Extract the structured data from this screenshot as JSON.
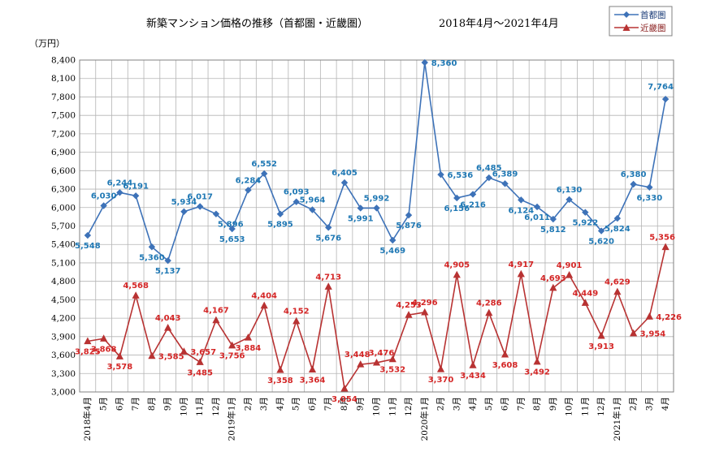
{
  "chart_data": {
    "type": "line",
    "title": "新築マンション価格の推移（首都圏・近畿圏）",
    "period": "2018年4月～2021年4月",
    "ylabel": "（万円）",
    "ylim": [
      3000,
      8400
    ],
    "ystep": 300,
    "grid": true,
    "legend_position": "top-right",
    "categories": [
      "2018年4月",
      "5月",
      "6月",
      "7月",
      "8月",
      "9月",
      "10月",
      "11月",
      "12月",
      "2019年1月",
      "2月",
      "3月",
      "4月",
      "5月",
      "6月",
      "7月",
      "8月",
      "9月",
      "10月",
      "11月",
      "12月",
      "2020年1月",
      "2月",
      "3月",
      "4月",
      "5月",
      "6月",
      "7月",
      "8月",
      "9月",
      "10月",
      "11月",
      "12月",
      "2021年1月",
      "2月",
      "3月",
      "4月"
    ],
    "series": [
      {
        "name": "首都圏",
        "color": "#3d72b8",
        "label_color": "#1f78b4",
        "marker": "diamond",
        "values": [
          5548,
          6030,
          6244,
          6191,
          5360,
          5137,
          5934,
          6017,
          5896,
          5653,
          6284,
          6552,
          5895,
          6093,
          5964,
          5676,
          6405,
          5991,
          5992,
          5469,
          5876,
          8360,
          6536,
          6156,
          6216,
          6485,
          6389,
          6124,
          6011,
          5812,
          6130,
          5922,
          5620,
          5824,
          6380,
          6330,
          7764
        ],
        "labels": [
          "5,548",
          "6,030",
          "6,244",
          "6,191",
          "5,360",
          "5,137",
          "5,934",
          "6,017",
          "5,896",
          "5,653",
          "6,284",
          "6,552",
          "5,895",
          "6,093",
          "5,964",
          "5,676",
          "6,405",
          "5,991",
          "5,992",
          "5,469",
          "5,876",
          "8,360",
          "6,536",
          "6,156",
          "6,216",
          "6,485",
          "6,389",
          "6,124",
          "6,011",
          "5,812",
          "6,130",
          "5,922",
          "5,620",
          "5,824",
          "6,380",
          "6,330",
          "7,764"
        ]
      },
      {
        "name": "近畿圏",
        "color": "#b83232",
        "label_color": "#d42626",
        "marker": "triangle",
        "values": [
          3825,
          3868,
          3578,
          4568,
          3585,
          4043,
          3657,
          3485,
          4167,
          3756,
          3884,
          4404,
          3358,
          4152,
          3364,
          4713,
          3054,
          3448,
          3476,
          3532,
          4253,
          4296,
          3370,
          4905,
          3434,
          4286,
          3608,
          4917,
          3492,
          4693,
          4901,
          4449,
          3913,
          4629,
          3954,
          4226,
          5356
        ],
        "labels": [
          "3,825",
          "3,868",
          "3,578",
          "4,568",
          "3,585",
          "4,043",
          "3,657",
          "3,485",
          "4,167",
          "3,756",
          "3,884",
          "4,404",
          "3,358",
          "4,152",
          "3,364",
          "4,713",
          "3,054",
          "3,448",
          "3,476",
          "3,532",
          "4,253",
          "4,296",
          "3,370",
          "4,905",
          "3,434",
          "4,286",
          "3,608",
          "4,917",
          "3,492",
          "4,693",
          "4,901",
          "4,449",
          "3,913",
          "4,629",
          "3,954",
          "4,226",
          "5,356"
        ]
      }
    ]
  }
}
